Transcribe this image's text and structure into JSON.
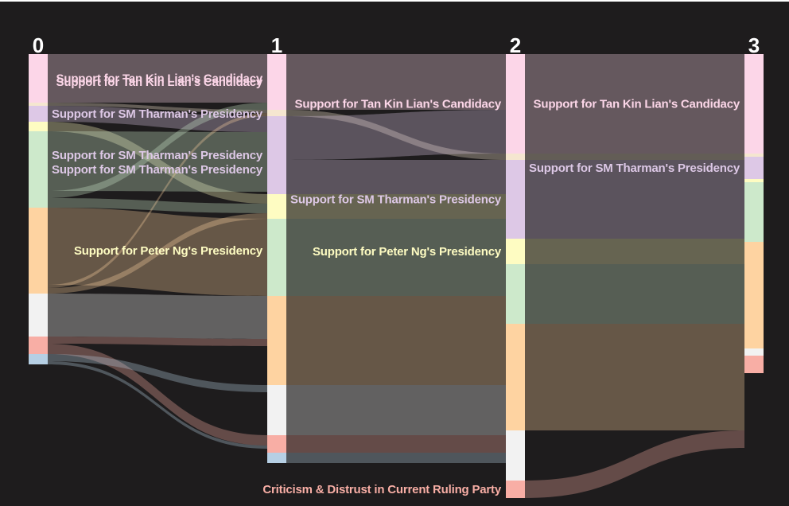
{
  "chart_data": {
    "type": "sankey",
    "columns": [
      "0",
      "1",
      "2",
      "3"
    ],
    "colors": {
      "background": "#1e1c1d",
      "tan_kin_lian": "#fcd6e8",
      "sm_tharman": "#ddc8e6",
      "peter_ng": "#fefcc2",
      "green": "#cde9cb",
      "orange": "#fed3a1",
      "white": "#f2f2f2",
      "red": "#f8aea5",
      "blue": "#b6cfe4"
    },
    "nodes": [
      {
        "id": "c0_tkl",
        "col": 0,
        "value": 61,
        "color": "#fcd6e8",
        "label": "Support for Tan Kin Lian's Candidacy",
        "label_color": "#fcd6e8"
      },
      {
        "id": "c0_gap",
        "col": 0,
        "value": 4,
        "color": "#f5e6d0",
        "label": ""
      },
      {
        "id": "c0_smt",
        "col": 0,
        "value": 20,
        "color": "#ddc8e6",
        "label": "Support for SM Tharman's Presidency",
        "label_color": "#ddc8e6"
      },
      {
        "id": "c0_png",
        "col": 0,
        "value": 12,
        "color": "#fefcc2",
        "label": "",
        "label_color": "#fefcc2"
      },
      {
        "id": "c0_grn",
        "col": 0,
        "value": 96,
        "color": "#cde9cb",
        "label": "Support for SM Tharman's Presidency",
        "label_color": "#ddc8e6"
      },
      {
        "id": "c0_org",
        "col": 0,
        "value": 108,
        "color": "#fed3a1",
        "label": "Support for Peter Ng's Presidency",
        "label_color": "#fefcc2"
      },
      {
        "id": "c0_wht",
        "col": 0,
        "value": 54,
        "color": "#f2f2f2",
        "label": ""
      },
      {
        "id": "c0_red",
        "col": 0,
        "value": 22,
        "color": "#f8aea5",
        "label": ""
      },
      {
        "id": "c0_blu",
        "col": 0,
        "value": 13,
        "color": "#b6cfe4",
        "label": ""
      },
      {
        "id": "c1_tkl",
        "col": 1,
        "value": 70,
        "color": "#fcd6e8",
        "label": "Support for Tan Kin Lian's Candidacy",
        "label_color": "#fcd6e8"
      },
      {
        "id": "c1_gap",
        "col": 1,
        "value": 8,
        "color": "#f5e6d0",
        "label": ""
      },
      {
        "id": "c1_smt",
        "col": 1,
        "value": 98,
        "color": "#ddc8e6",
        "label": "Support for SM Tharman's Presidency",
        "label_color": "#ddc8e6"
      },
      {
        "id": "c1_png",
        "col": 1,
        "value": 31,
        "color": "#fefcc2",
        "label": "",
        "label_color": "#fefcc2"
      },
      {
        "id": "c1_grn",
        "col": 1,
        "value": 97,
        "color": "#cde9cb",
        "label": "",
        "label_color": "#fefcc2"
      },
      {
        "id": "c1_org",
        "col": 1,
        "value": 112,
        "color": "#fed3a1",
        "label": ""
      },
      {
        "id": "c1_wht",
        "col": 1,
        "value": 63,
        "color": "#f2f2f2",
        "label": ""
      },
      {
        "id": "c1_red",
        "col": 1,
        "value": 22,
        "color": "#f8aea5",
        "label": ""
      },
      {
        "id": "c1_blu",
        "col": 1,
        "value": 13,
        "color": "#b6cfe4",
        "label": ""
      },
      {
        "id": "c2_tkl",
        "col": 2,
        "value": 125,
        "color": "#fcd6e8",
        "label": "Support for Tan Kin Lian's Candidacy",
        "label_color": "#fcd6e8"
      },
      {
        "id": "c2_gap",
        "col": 2,
        "value": 8,
        "color": "#f5e6d0",
        "label": ""
      },
      {
        "id": "c2_smt",
        "col": 2,
        "value": 99,
        "color": "#ddc8e6",
        "label": "Support for SM Tharman's Presidency",
        "label_color": "#ddc8e6"
      },
      {
        "id": "c2_png",
        "col": 2,
        "value": 32,
        "color": "#fefcc2",
        "label": "Support for Peter Ng's Presidency",
        "label_color": "#fefcc2"
      },
      {
        "id": "c2_grn",
        "col": 2,
        "value": 75,
        "color": "#cde9cb",
        "label": ""
      },
      {
        "id": "c2_org",
        "col": 2,
        "value": 134,
        "color": "#fed3a1",
        "label": ""
      },
      {
        "id": "c2_wht",
        "col": 2,
        "value": 63,
        "color": "#f2f2f2",
        "label": ""
      },
      {
        "id": "c2_red",
        "col": 2,
        "value": 22,
        "color": "#f8aea5",
        "label": "Criticism & Distrust in Current Ruling Party",
        "label_color": "#f8aea5"
      },
      {
        "id": "c3_tkl",
        "col": 3,
        "value": 125,
        "color": "#fcd6e8",
        "label": "Support for Tan Kin Lian's Candidacy",
        "label_color": "#fcd6e8"
      },
      {
        "id": "c3_gap",
        "col": 3,
        "value": 4,
        "color": "#f5e6d0",
        "label": ""
      },
      {
        "id": "c3_smt",
        "col": 3,
        "value": 28,
        "color": "#ddc8e6",
        "label": "Support for SM Tharman's Presidency",
        "label_color": "#ddc8e6"
      },
      {
        "id": "c3_png",
        "col": 3,
        "value": 4,
        "color": "#fefcc2",
        "label": ""
      },
      {
        "id": "c3_grn",
        "col": 3,
        "value": 75,
        "color": "#cde9cb",
        "label": ""
      },
      {
        "id": "c3_org",
        "col": 3,
        "value": 134,
        "color": "#fed3a1",
        "label": ""
      },
      {
        "id": "c3_wht",
        "col": 3,
        "value": 9,
        "color": "#f2f2f2",
        "label": ""
      },
      {
        "id": "c3_red",
        "col": 3,
        "value": 22,
        "color": "#f8aea5",
        "label": ""
      }
    ],
    "links": [
      {
        "source": "c0_tkl",
        "target": "c1_tkl",
        "value": 61,
        "color": "#fcd6e8"
      },
      {
        "source": "c0_gap",
        "target": "c1_gap",
        "value": 4,
        "color": "#f5e6d0"
      },
      {
        "source": "c0_smt",
        "target": "c1_smt",
        "value": 20,
        "color": "#ddc8e6"
      },
      {
        "source": "c0_png",
        "target": "c1_png",
        "value": 12,
        "color": "#fefcc2"
      },
      {
        "source": "c0_grn",
        "target": "c1_smt",
        "value": 75,
        "color": "#cde9cb"
      },
      {
        "source": "c0_grn",
        "target": "c1_tkl",
        "value": 9,
        "color": "#cde9cb"
      },
      {
        "source": "c0_grn",
        "target": "c1_png",
        "value": 12,
        "color": "#cde9cb"
      },
      {
        "source": "c0_org",
        "target": "c1_grn",
        "value": 97,
        "color": "#fed3a1"
      },
      {
        "source": "c0_org",
        "target": "c1_gap",
        "value": 4,
        "color": "#fed3a1"
      },
      {
        "source": "c0_org",
        "target": "c1_png",
        "value": 7,
        "color": "#fed3a1"
      },
      {
        "source": "c0_wht",
        "target": "c1_org",
        "value": 54,
        "color": "#f2f2f2"
      },
      {
        "source": "c0_red",
        "target": "c1_org",
        "value": 9,
        "color": "#f8aea5"
      },
      {
        "source": "c0_red",
        "target": "c1_red",
        "value": 13,
        "color": "#f8aea5"
      },
      {
        "source": "c0_blu",
        "target": "c1_org",
        "value": 0,
        "color": "#b6cfe4"
      },
      {
        "source": "c0_blu",
        "target": "c1_wht",
        "value": 9,
        "color": "#b6cfe4"
      },
      {
        "source": "c0_blu",
        "target": "c1_red",
        "value": 4,
        "color": "#b6cfe4"
      },
      {
        "source": "c1_tkl",
        "target": "c2_tkl",
        "value": 70,
        "color": "#fcd6e8"
      },
      {
        "source": "c1_gap",
        "target": "c2_gap",
        "value": 8,
        "color": "#f5e6d0"
      },
      {
        "source": "c1_smt",
        "target": "c2_tkl",
        "value": 55,
        "color": "#ddc8e6"
      },
      {
        "source": "c1_smt",
        "target": "c2_smt",
        "value": 43,
        "color": "#ddc8e6"
      },
      {
        "source": "c1_png",
        "target": "c2_smt",
        "value": 31,
        "color": "#fefcc2"
      },
      {
        "source": "c1_grn",
        "target": "c2_smt",
        "value": 25,
        "color": "#cde9cb"
      },
      {
        "source": "c1_grn",
        "target": "c2_png",
        "value": 32,
        "color": "#cde9cb"
      },
      {
        "source": "c1_grn",
        "target": "c2_grn",
        "value": 40,
        "color": "#cde9cb"
      },
      {
        "source": "c1_org",
        "target": "c2_grn",
        "value": 35,
        "color": "#fed3a1"
      },
      {
        "source": "c1_org",
        "target": "c2_org",
        "value": 77,
        "color": "#fed3a1"
      },
      {
        "source": "c1_wht",
        "target": "c2_org",
        "value": 57,
        "color": "#f2f2f2"
      },
      {
        "source": "c1_wht",
        "target": "c2_wht",
        "value": 6,
        "color": "#f2f2f2"
      },
      {
        "source": "c1_red",
        "target": "c2_wht",
        "value": 22,
        "color": "#f8aea5"
      },
      {
        "source": "c1_blu",
        "target": "c2_wht",
        "value": 13,
        "color": "#b6cfe4"
      },
      {
        "source": "c1_wht",
        "target": "c2_red",
        "value": 0,
        "color": "#f2f2f2"
      },
      {
        "source": "c2_tkl",
        "target": "c3_tkl",
        "value": 125,
        "color": "#fcd6e8"
      },
      {
        "source": "c2_gap",
        "target": "c3_gap",
        "value": 4,
        "color": "#f5e6d0"
      },
      {
        "source": "c2_gap",
        "target": "c3_smt",
        "value": 4,
        "color": "#f5e6d0"
      },
      {
        "source": "c2_smt",
        "target": "c3_smt",
        "value": 24,
        "color": "#ddc8e6"
      },
      {
        "source": "c2_smt",
        "target": "c3_png",
        "value": 4,
        "color": "#ddc8e6"
      },
      {
        "source": "c2_smt",
        "target": "c3_grn",
        "value": 71,
        "color": "#ddc8e6"
      },
      {
        "source": "c2_png",
        "target": "c3_grn",
        "value": 4,
        "color": "#fefcc2"
      },
      {
        "source": "c2_png",
        "target": "c3_org",
        "value": 28,
        "color": "#fefcc2"
      },
      {
        "source": "c2_grn",
        "target": "c3_org",
        "value": 75,
        "color": "#cde9cb"
      },
      {
        "source": "c2_org",
        "target": "c3_org",
        "value": 31,
        "color": "#fed3a1"
      },
      {
        "source": "c2_org",
        "target": "c3_wht",
        "value": 9,
        "color": "#fed3a1"
      },
      {
        "source": "c2_org",
        "target": "c3_red",
        "value": 94,
        "color": "#fed3a1"
      },
      {
        "source": "c2_wht",
        "target": "c3_red",
        "value": 0,
        "color": "#f2f2f2"
      },
      {
        "source": "c2_red",
        "target": "c3_red",
        "value": 22,
        "color": "#f8aea5"
      }
    ]
  }
}
